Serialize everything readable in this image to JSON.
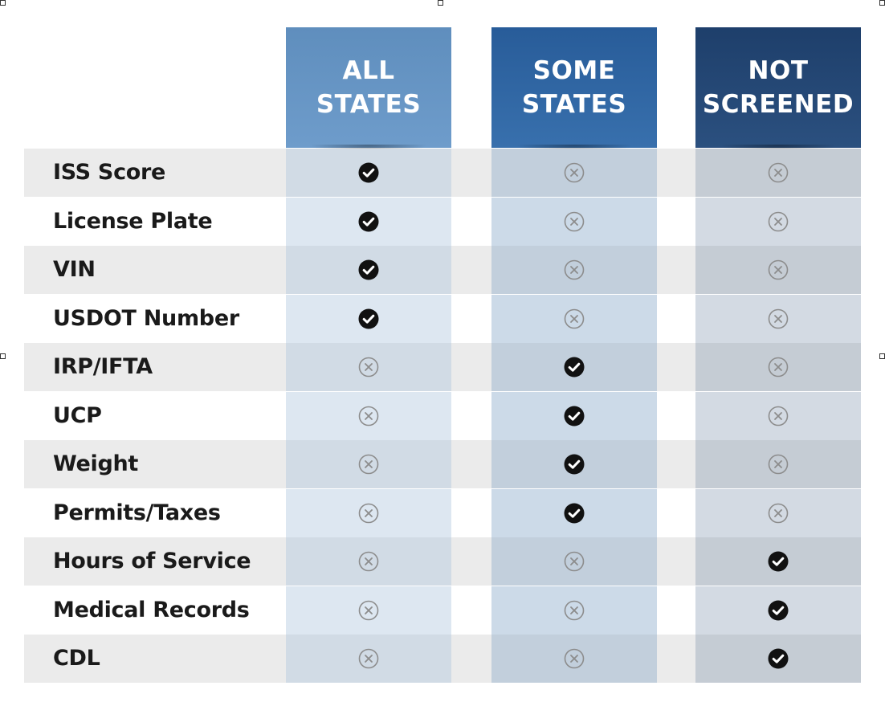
{
  "columns": [
    {
      "key": "all",
      "line1": "ALL",
      "line2": "STATES",
      "color": "#6896c5"
    },
    {
      "key": "some",
      "line1": "SOME",
      "line2": "STATES",
      "color": "#3068a5"
    },
    {
      "key": "not",
      "line1": "NOT",
      "line2": "SCREENED",
      "color": "#254876"
    }
  ],
  "rows": [
    {
      "label": "ISS Score",
      "status": "all"
    },
    {
      "label": "License Plate",
      "status": "all"
    },
    {
      "label": "VIN",
      "status": "all"
    },
    {
      "label": "USDOT Number",
      "status": "all"
    },
    {
      "label": "IRP/IFTA",
      "status": "some"
    },
    {
      "label": "UCP",
      "status": "some"
    },
    {
      "label": "Weight",
      "status": "some"
    },
    {
      "label": "Permits/Taxes",
      "status": "some"
    },
    {
      "label": "Hours of Service",
      "status": "not"
    },
    {
      "label": "Medical Records",
      "status": "not"
    },
    {
      "label": "CDL",
      "status": "not"
    }
  ],
  "icons": {
    "yes": "check-circle-icon",
    "no": "x-circle-icon"
  }
}
